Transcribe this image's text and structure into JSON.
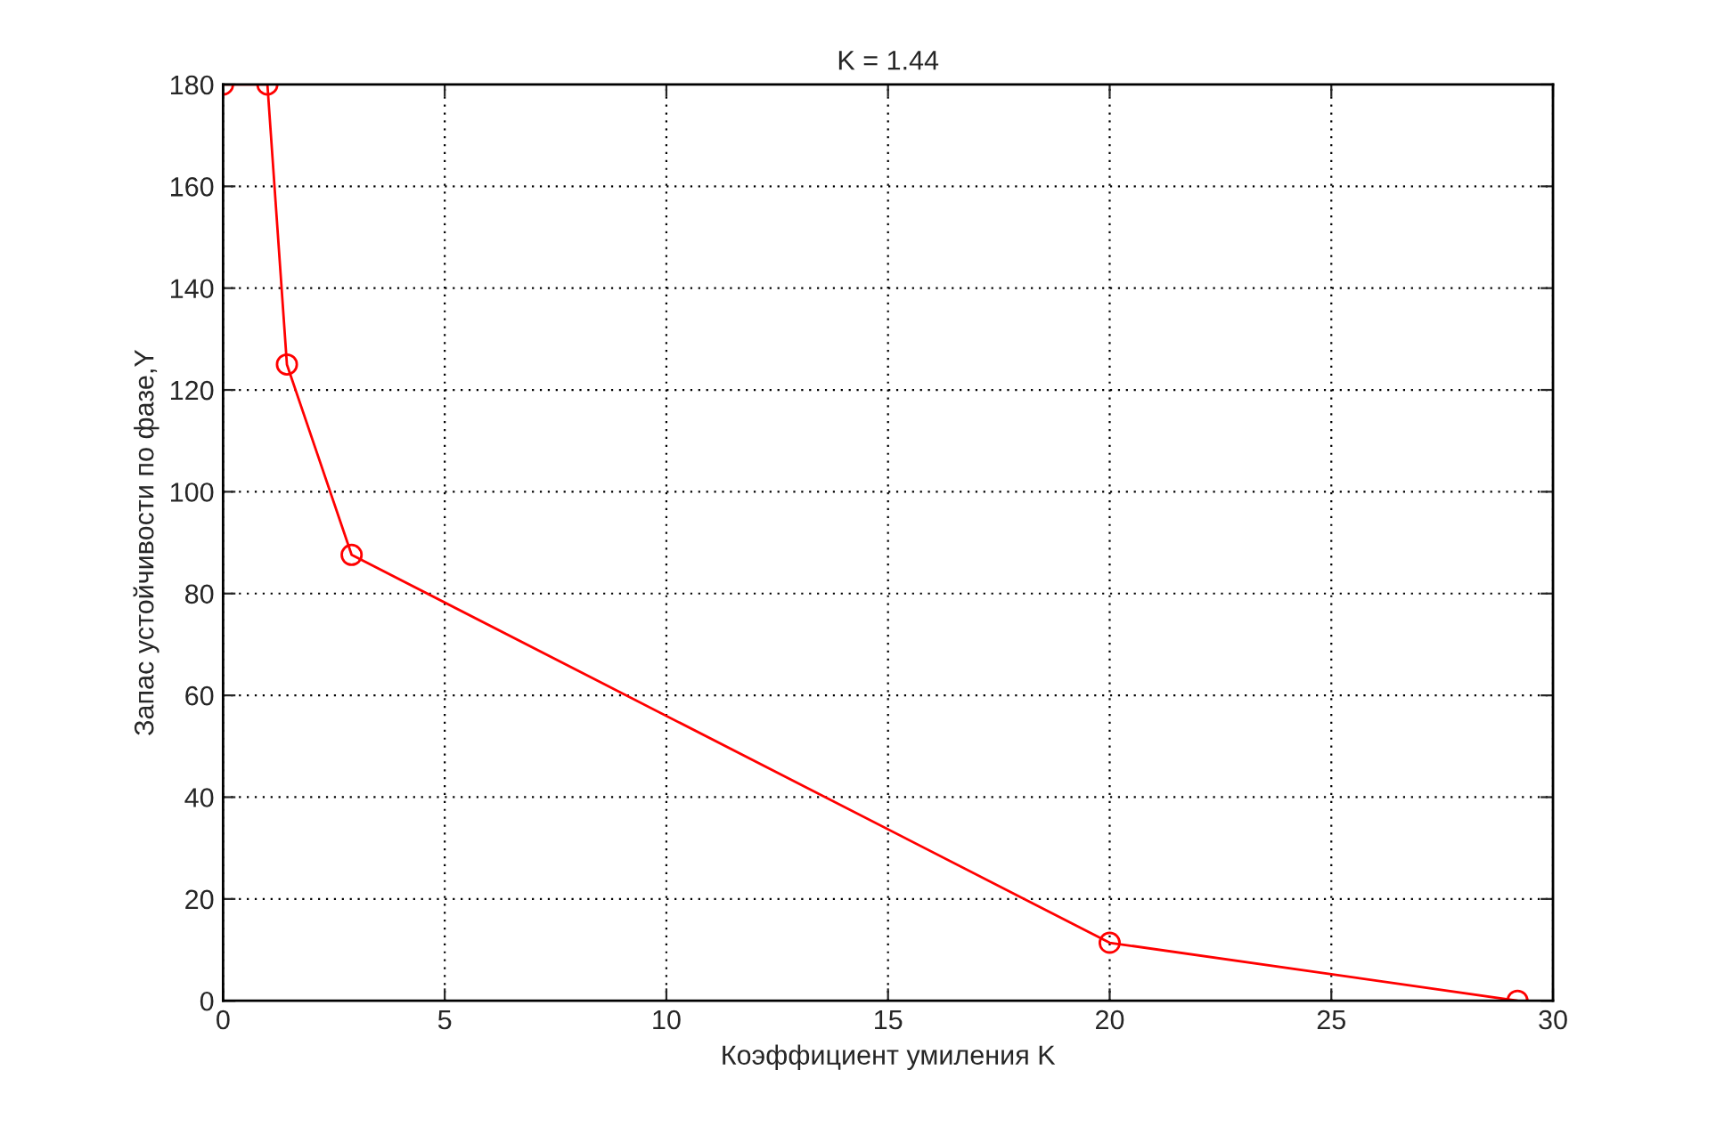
{
  "chart_data": {
    "type": "line",
    "title": "K = 1.44",
    "xlabel": "Коэффициент умиления K",
    "ylabel": "Запас устойчивости по фазе,Y",
    "series": [
      {
        "color": "#ff0000",
        "x": [
          0,
          1,
          1.44,
          2.9,
          20,
          29.2
        ],
        "values": [
          180,
          180,
          125,
          87.6,
          11.4,
          0
        ]
      }
    ],
    "xlim": [
      0,
      30
    ],
    "xticks": [
      0,
      5,
      10,
      15,
      20,
      25,
      30
    ],
    "ylim": [
      0,
      180
    ],
    "yticks": [
      0,
      20,
      40,
      60,
      80,
      100,
      120,
      140,
      160,
      180
    ],
    "grid": true,
    "marker": "circle",
    "line_style": "solid",
    "legend": false
  }
}
